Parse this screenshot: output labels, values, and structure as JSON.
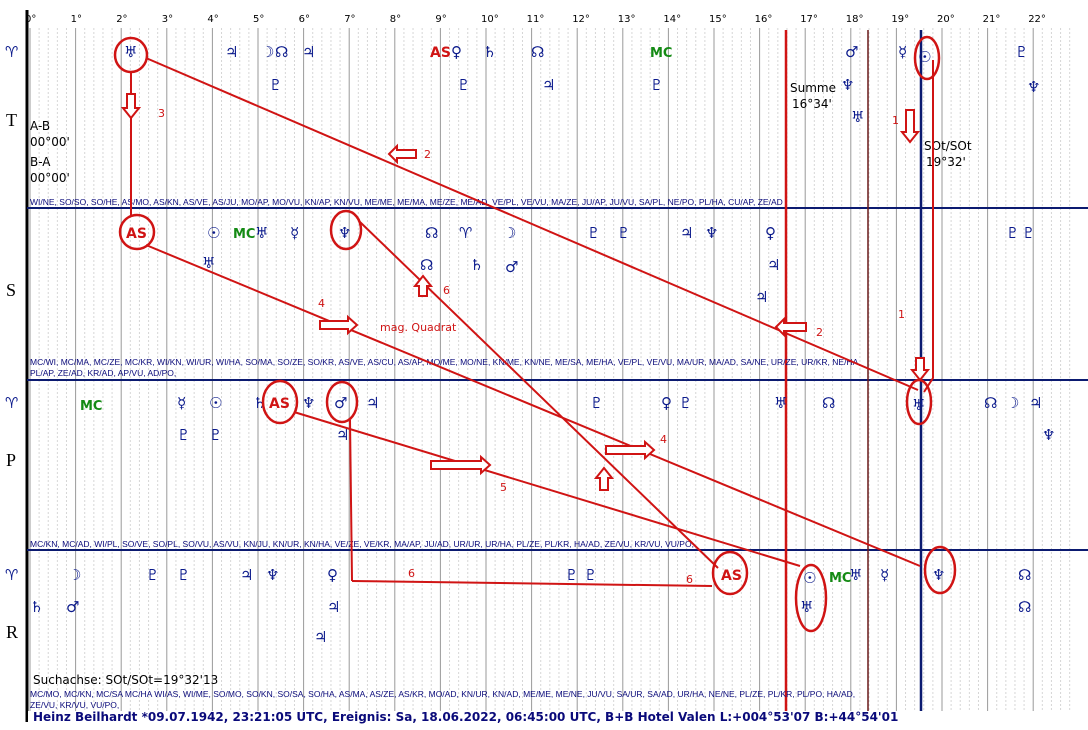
{
  "degree_labels": [
    "0°",
    "1°",
    "2°",
    "3°",
    "4°",
    "5°",
    "6°",
    "7°",
    "8°",
    "9°",
    "10°",
    "11°",
    "12°",
    "13°",
    "14°",
    "15°",
    "16°",
    "17°",
    "18°",
    "19°",
    "20°",
    "21°",
    "22°"
  ],
  "row_labels": [
    "T",
    "S",
    "P",
    "R"
  ],
  "info_left": {
    "ab_label": "A-B",
    "ab_value": "00°00'",
    "ba_label": "B-A",
    "ba_value": "00°00'"
  },
  "summe": {
    "label": "Summe",
    "value": "16°34'"
  },
  "sot": {
    "label": "SOt/SOt",
    "value": "19°32'"
  },
  "pairs_line_1": "WI/NE, SO/SO, SO/HE, AS/MO, AS/KN, AS/VE, AS/JU, MO/AP, MO/VU, KN/AP, KN/VU, ME/ME, ME/MA, ME/ZE, ME/AD, VE/PL, VE/VU, MA/ZE, JU/AP, JU/VU, SA/PL, NE/PO, PL/HA, CU/AP, ZE/AD",
  "pairs_line_2a": "MC/WI, MC/MA, MC/ZE, MC/KR, WI/KN, WI/UR, WI/HA, SO/MA, SO/ZE, SO/KR, AS/VE, AS/CU, AS/AP, MO/ME, MO/NE, KN/ME, KN/NE, ME/SA, ME/HA, VE/PL, VE/VU, MA/UR, MA/AD, SA/NE, UR/ZE, UR/KR, NE/HA,",
  "pairs_line_2b": "PL/AP, ZE/AD, KR/AD, AP/VU, AD/PO,",
  "pairs_line_3": "MC/KN, MC/AD, WI/PL, SO/VE, SO/PL, SO/VU, AS/VU, KN/JU, KN/UR, KN/HA, VE/ZE, VE/KR, MA/AP, JU/AD, UR/UR, UR/HA, PL/ZE, PL/KR, HA/AD, ZE/VU, KR/VU, VU/PO,",
  "pairs_line_4a": "MC/MO, MC/KN, MC/SA MC/HA WI/AS, WI/ME, SO/MO, SO/KN, SO/SA, SO/HA, AS/MA, AS/ZE, AS/KR, MO/AD, KN/UR, KN/AD, ME/ME, ME/NE, JU/VU, SA/UR, SA/AD, UR/HA, NE/NE, PL/ZE, PL/KR, PL/PO, HA/AD,",
  "pairs_line_4b": "ZE/VU, KR/VU, VU/PO,",
  "suchachse": "Suchachse: SOt/SOt=19°32'13",
  "footer": "Heinz Beilhardt  *09.07.1942, 23:21:05 UTC, Ereignis: Sa, 18.06.2022, 06:45:00 UTC, B+B Hotel Valen L:+004°53'07 B:+44°54'01",
  "labels": {
    "as": "AS",
    "mc": "MC",
    "mag_quadrat": "mag. Quadrat"
  },
  "annotation_numbers": [
    "1",
    "1",
    "2",
    "2",
    "3",
    "4",
    "4",
    "5",
    "6",
    "6",
    "6"
  ],
  "glyphs": {
    "aries": "♈",
    "sun": "☉",
    "moon": "☽",
    "mercury": "☿",
    "venus": "♀",
    "mars": "♂",
    "jupiter": "♃",
    "saturn": "♄",
    "uranus": "♅",
    "neptune": "♆",
    "pluto": "♇",
    "node": "☊"
  },
  "colors": {
    "line_red": "#d01414",
    "axis_blue": "#0b1a70",
    "glyph_blue": "#0b1a8c",
    "mc_green": "#148a14",
    "grid": "#b9b9b9"
  }
}
